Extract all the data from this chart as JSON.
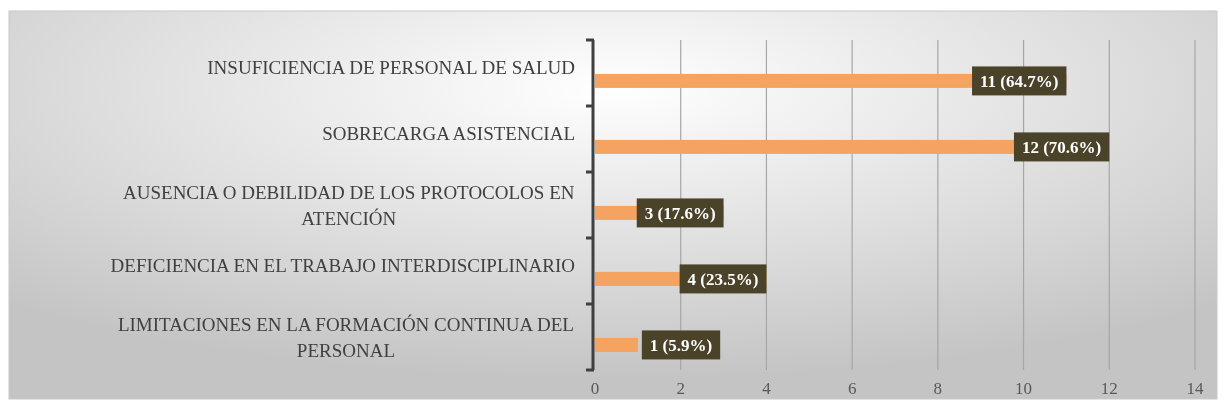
{
  "chart_data": {
    "type": "bar",
    "orientation": "horizontal",
    "categories": [
      "INSUFICIENCIA DE PERSONAL DE SALUD",
      "SOBRECARGA ASISTENCIAL",
      "AUSENCIA O DEBILIDAD DE LOS PROTOCOLOS EN ATENCIÓN",
      "DEFICIENCIA EN EL TRABAJO INTERDISCIPLINARIO",
      "LIMITACIONES EN LA FORMACIÓN CONTINUA DEL PERSONAL"
    ],
    "values": [
      11,
      12,
      3,
      4,
      1
    ],
    "value_labels": [
      "11 (64.7%)",
      "12 (70.6%)",
      "3 (17.6%)",
      "4 (23.5%)",
      "1 (5.9%)"
    ],
    "color": "#f4a460",
    "xlim": [
      0,
      14
    ],
    "xticks": [
      0,
      2,
      4,
      6,
      8,
      10,
      12,
      14
    ],
    "grid": "x"
  }
}
